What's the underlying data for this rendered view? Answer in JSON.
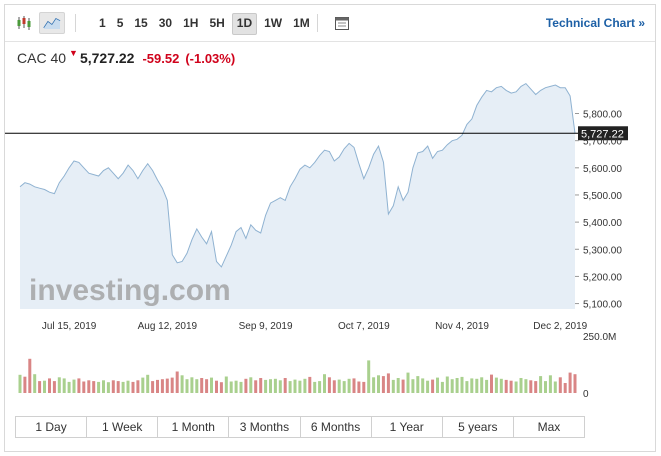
{
  "toolbar": {
    "intervals": [
      "1",
      "5",
      "15",
      "30",
      "1H",
      "5H",
      "1D",
      "1W",
      "1M"
    ],
    "active_interval": "1D",
    "technical_chart_label": "Technical Chart »"
  },
  "quote": {
    "name": "CAC 40",
    "last": "5,727.22",
    "change": "-59.52",
    "change_pct": "(-1.03%)"
  },
  "watermark": "investing.com",
  "colors": {
    "area_line": "#8fb2d1",
    "area_fill": "#e6eef6",
    "down": "#d0021b",
    "vol_up": "#a9d08e",
    "vol_down": "#d98585",
    "link": "#1d60a6"
  },
  "chart_data": {
    "type": "area",
    "price_axis": {
      "ticks": [
        "5,100.00",
        "5,200.00",
        "5,300.00",
        "5,400.00",
        "5,500.00",
        "5,600.00",
        "5,700.00",
        "5,800.00"
      ],
      "tick_values": [
        5100,
        5200,
        5300,
        5400,
        5500,
        5600,
        5700,
        5800
      ],
      "ylim": [
        5080,
        5905
      ]
    },
    "x_axis": {
      "labels": [
        "Jul 15, 2019",
        "Aug 12, 2019",
        "Sep 9, 2019",
        "Oct 7, 2019",
        "Nov 4, 2019",
        "Dec 2, 2019"
      ],
      "label_index": [
        10,
        30,
        50,
        70,
        90,
        110
      ],
      "n": 114
    },
    "last_value": 5727.22,
    "last_value_label": "5,727.22",
    "price": [
      5530,
      5545,
      5540,
      5530,
      5525,
      5520,
      5510,
      5505,
      5545,
      5570,
      5600,
      5625,
      5620,
      5600,
      5580,
      5575,
      5570,
      5590,
      5600,
      5580,
      5560,
      5580,
      5610,
      5590,
      5560,
      5590,
      5615,
      5590,
      5555,
      5525,
      5480,
      5280,
      5250,
      5255,
      5285,
      5335,
      5375,
      5345,
      5320,
      5365,
      5255,
      5235,
      5275,
      5315,
      5365,
      5380,
      5340,
      5390,
      5370,
      5360,
      5425,
      5470,
      5480,
      5490,
      5480,
      5530,
      5560,
      5595,
      5610,
      5600,
      5620,
      5645,
      5665,
      5660,
      5625,
      5640,
      5670,
      5690,
      5675,
      5615,
      5560,
      5600,
      5650,
      5680,
      5620,
      5430,
      5460,
      5530,
      5480,
      5510,
      5600,
      5655,
      5660,
      5680,
      5635,
      5660,
      5665,
      5685,
      5700,
      5705,
      5720,
      5760,
      5780,
      5830,
      5860,
      5885,
      5880,
      5895,
      5900,
      5885,
      5875,
      5880,
      5900,
      5910,
      5890,
      5870,
      5885,
      5895,
      5900,
      5905,
      5895,
      5895,
      5865,
      5727
    ],
    "volume_axis": {
      "label": "250.0M",
      "zero_label": "0",
      "ylim": [
        0,
        250
      ]
    },
    "volume": [
      95,
      85,
      178,
      98,
      62,
      64,
      76,
      62,
      82,
      76,
      58,
      70,
      76,
      60,
      66,
      62,
      58,
      66,
      56,
      66,
      62,
      58,
      64,
      58,
      66,
      80,
      95,
      62,
      68,
      72,
      75,
      80,
      112,
      92,
      72,
      82,
      72,
      78,
      72,
      80,
      64,
      56,
      86,
      60,
      64,
      58,
      74,
      82,
      66,
      78,
      68,
      72,
      74,
      66,
      78,
      62,
      70,
      64,
      74,
      84,
      58,
      62,
      98,
      82,
      66,
      70,
      62,
      74,
      76,
      60,
      58,
      170,
      82,
      92,
      88,
      102,
      68,
      78,
      70,
      106,
      72,
      88,
      76,
      64,
      70,
      80,
      58,
      86,
      72,
      78,
      84,
      62,
      76,
      74,
      82,
      68,
      96,
      80,
      74,
      68,
      64,
      60,
      78,
      72,
      66,
      62,
      88,
      62,
      92,
      60,
      82,
      52,
      106,
      98
    ],
    "volume_up": [
      1,
      0,
      0,
      1,
      0,
      1,
      0,
      0,
      1,
      1,
      1,
      1,
      0,
      0,
      0,
      0,
      1,
      1,
      1,
      0,
      0,
      1,
      1,
      0,
      0,
      1,
      1,
      0,
      0,
      0,
      0,
      0,
      0,
      1,
      1,
      1,
      1,
      0,
      0,
      1,
      0,
      0,
      1,
      1,
      1,
      1,
      0,
      1,
      0,
      0,
      1,
      1,
      1,
      1,
      0,
      1,
      1,
      1,
      1,
      0,
      1,
      1,
      1,
      0,
      0,
      1,
      1,
      1,
      0,
      0,
      0,
      1,
      1,
      1,
      0,
      0,
      1,
      1,
      0,
      1,
      1,
      1,
      1,
      1,
      0,
      1,
      1,
      1,
      1,
      1,
      1,
      1,
      1,
      1,
      1,
      1,
      0,
      1,
      1,
      0,
      0,
      1,
      1,
      1,
      0,
      0,
      1,
      1,
      1,
      1,
      0,
      0,
      0,
      0
    ]
  },
  "range_buttons": [
    "1 Day",
    "1 Week",
    "1 Month",
    "3 Months",
    "6 Months",
    "1 Year",
    "5 years",
    "Max"
  ]
}
